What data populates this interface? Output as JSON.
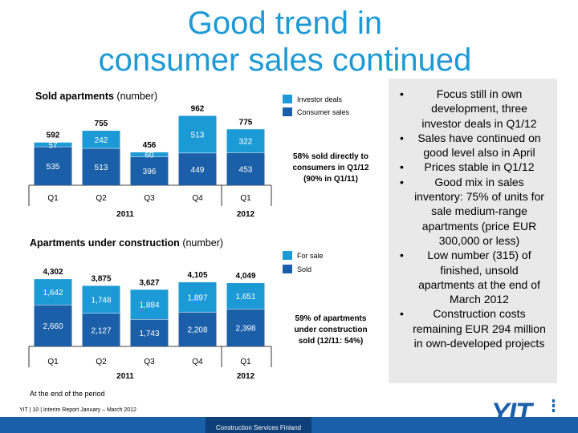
{
  "title_line1": "Good trend in",
  "title_line2": "consumer sales continued",
  "chart1": {
    "heading": "Sold apartments",
    "unit": "(number)",
    "legend": [
      "Investor deals",
      "Consumer sales"
    ],
    "note": [
      "58% sold directly to",
      "consumers in Q1/12",
      "(90% in Q1/11)"
    ],
    "quarters": [
      "Q1",
      "Q2",
      "Q3",
      "Q4",
      "Q1"
    ],
    "years": [
      "2011",
      "2012"
    ]
  },
  "chart2": {
    "heading": "Apartments under construction",
    "unit": "(number)",
    "legend": [
      "For sale",
      "Sold"
    ],
    "note": [
      "59% of apartments",
      "under construction",
      "sold (12/11: 54%)"
    ],
    "quarters": [
      "Q1",
      "Q2",
      "Q3",
      "Q4",
      "Q1"
    ],
    "years": [
      "2011",
      "2012"
    ]
  },
  "chart_data": [
    {
      "type": "bar",
      "stacked": true,
      "title": "Sold apartments (number)",
      "categories": [
        "Q1",
        "Q2",
        "Q3",
        "Q4",
        "Q1"
      ],
      "category_groups": [
        {
          "label": "2011",
          "span": 4
        },
        {
          "label": "2012",
          "span": 1
        }
      ],
      "series": [
        {
          "name": "Consumer sales",
          "values": [
            535,
            513,
            396,
            449,
            453
          ],
          "color": "#1b5fa8"
        },
        {
          "name": "Investor deals",
          "values": [
            57,
            242,
            60,
            513,
            322
          ],
          "color": "#1c9ad6"
        }
      ],
      "totals": [
        592,
        755,
        456,
        962,
        775
      ],
      "annotation": "58% sold directly to consumers in Q1/12 (90% in Q1/11)"
    },
    {
      "type": "bar",
      "stacked": true,
      "title": "Apartments under construction (number)",
      "categories": [
        "Q1",
        "Q2",
        "Q3",
        "Q4",
        "Q1"
      ],
      "category_groups": [
        {
          "label": "2011",
          "span": 4
        },
        {
          "label": "2012",
          "span": 1
        }
      ],
      "series": [
        {
          "name": "Sold",
          "values": [
            2660,
            2127,
            1743,
            2208,
            2398
          ],
          "color": "#1b5fa8"
        },
        {
          "name": "For sale",
          "values": [
            1642,
            1748,
            1884,
            1897,
            1651
          ],
          "color": "#1c9ad6"
        }
      ],
      "totals": [
        4302,
        3875,
        3627,
        4105,
        4049
      ],
      "annotation": "59% of apartments under construction sold (12/11: 54%)"
    }
  ],
  "colors": {
    "light": "#1c9ad6",
    "dark": "#1b5fa8",
    "title": "#1c9ad6"
  },
  "bullets": [
    "Focus still in own development, three investor deals in Q1/12",
    "Sales have continued on good level also in April",
    "Prices stable in Q1/12",
    "Good mix in sales inventory: 75% of units for sale medium-range apartments (price EUR 300,000 or less)",
    "Low number (315) of finished, unsold apartments at the end of March 2012",
    "Construction costs remaining EUR 294 million in own-developed projects"
  ],
  "footer": {
    "note": "At the end of the period",
    "ref": "YIT | 10 | Interim Report January – March 2012",
    "segment": "Construction Services Finland",
    "logo": "YIT"
  }
}
